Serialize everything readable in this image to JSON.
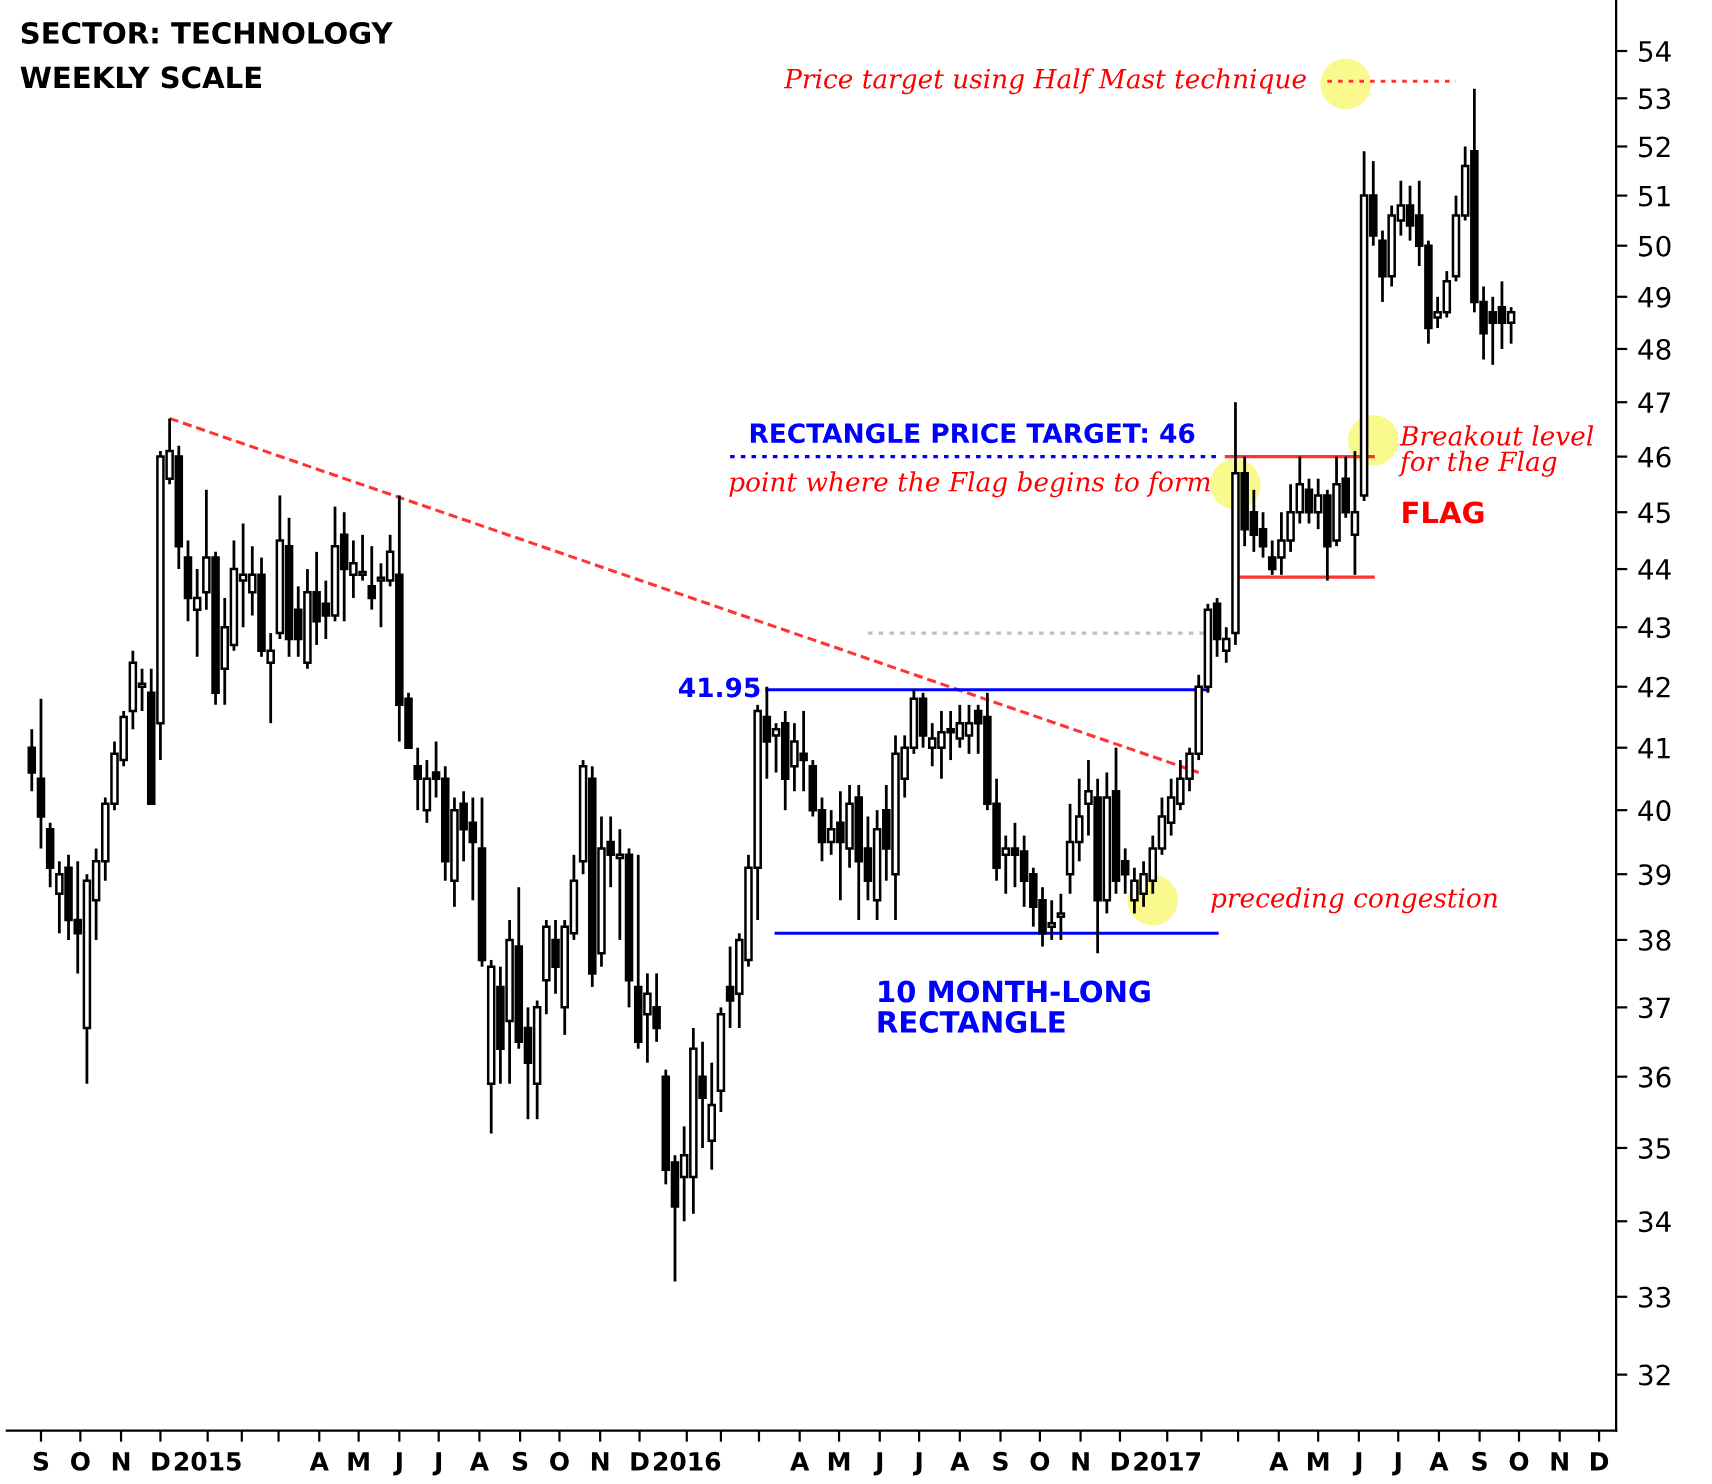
{
  "chart_data": {
    "type": "candlestick",
    "annotations": [
      "SECTOR: TECHNOLOGY",
      "WEEKLY SCALE",
      {
        "text": "Price target using Half Mast technique",
        "x": "2017-05-15",
        "y": 53.36
      },
      {
        "text": "RECTANGLE PRICE TARGET: 46",
        "x": "2016-03-07",
        "y": 46.0
      },
      {
        "text": "point where the Flag begins to form",
        "x": "2017-02-27",
        "y": 45.5
      },
      {
        "text": "Breakout level\nfor the Flag",
        "x": "2017-07-10",
        "y": 46.0
      },
      "FLAG",
      {
        "text": "41.95",
        "x": "2016-03-21",
        "y": 41.95
      },
      {
        "text": "preceding congestion",
        "x": "2017-01-23",
        "y": 38.6
      },
      "10 MONTH-LONG\nRECTANGLE"
    ],
    "x": [
      "2014-09-08",
      "2014-09-15",
      "2014-09-22",
      "2014-09-29",
      "2014-10-06",
      "2014-10-13",
      "2014-10-20",
      "2014-10-27",
      "2014-11-03",
      "2014-11-10",
      "2014-11-17",
      "2014-11-24",
      "2014-12-01",
      "2014-12-08",
      "2014-12-15",
      "2014-12-22",
      "2014-12-29",
      "2015-01-05",
      "2015-01-12",
      "2015-01-19",
      "2015-01-26",
      "2015-02-02",
      "2015-02-09",
      "2015-02-16",
      "2015-02-23",
      "2015-03-02",
      "2015-03-09",
      "2015-03-16",
      "2015-03-23",
      "2015-03-30",
      "2015-04-06",
      "2015-04-13",
      "2015-04-20",
      "2015-04-27",
      "2015-05-04",
      "2015-05-11",
      "2015-05-18",
      "2015-05-25",
      "2015-06-01",
      "2015-06-08",
      "2015-06-15",
      "2015-06-22",
      "2015-06-29",
      "2015-07-06",
      "2015-07-13",
      "2015-07-20",
      "2015-07-27",
      "2015-08-03",
      "2015-08-10",
      "2015-08-17",
      "2015-08-24",
      "2015-08-31",
      "2015-09-07",
      "2015-09-14",
      "2015-09-21",
      "2015-09-28",
      "2015-10-05",
      "2015-10-12",
      "2015-10-19",
      "2015-10-26",
      "2015-11-02",
      "2015-11-09",
      "2015-11-16",
      "2015-11-23",
      "2015-11-30",
      "2015-12-07",
      "2015-12-14",
      "2015-12-21",
      "2015-12-28",
      "2016-01-04",
      "2016-01-11",
      "2016-01-18",
      "2016-01-25",
      "2016-02-01",
      "2016-02-08",
      "2016-02-15",
      "2016-02-22",
      "2016-02-29",
      "2016-03-07",
      "2016-03-14",
      "2016-03-21",
      "2016-03-28",
      "2016-04-04",
      "2016-04-11",
      "2016-04-18",
      "2016-04-25",
      "2016-05-02",
      "2016-05-09",
      "2016-05-16",
      "2016-05-23",
      "2016-05-30",
      "2016-06-06",
      "2016-06-13",
      "2016-06-20",
      "2016-06-27",
      "2016-07-04",
      "2016-07-11",
      "2016-07-18",
      "2016-07-25",
      "2016-08-01",
      "2016-08-08",
      "2016-08-15",
      "2016-08-22",
      "2016-08-29",
      "2016-09-05",
      "2016-09-12",
      "2016-09-19",
      "2016-09-26",
      "2016-10-03",
      "2016-10-10",
      "2016-10-17",
      "2016-10-24",
      "2016-10-31",
      "2016-11-07",
      "2016-11-14",
      "2016-11-21",
      "2016-11-28",
      "2016-12-05",
      "2016-12-12",
      "2016-12-19",
      "2016-12-26",
      "2017-01-02",
      "2017-01-09",
      "2017-01-16",
      "2017-01-23",
      "2017-01-30",
      "2017-02-06",
      "2017-02-13",
      "2017-02-20",
      "2017-02-27",
      "2017-03-06",
      "2017-03-13",
      "2017-03-20",
      "2017-03-27",
      "2017-04-03",
      "2017-04-10",
      "2017-04-17",
      "2017-04-24",
      "2017-05-01",
      "2017-05-08",
      "2017-05-15",
      "2017-05-22",
      "2017-05-29",
      "2017-06-05",
      "2017-06-12",
      "2017-06-19",
      "2017-06-26",
      "2017-07-03",
      "2017-07-10",
      "2017-07-17",
      "2017-07-24",
      "2017-07-31",
      "2017-08-07",
      "2017-08-14",
      "2017-08-21",
      "2017-08-28",
      "2017-09-04",
      "2017-09-11",
      "2017-09-18",
      "2017-09-25",
      "2017-10-02",
      "2017-10-09"
    ],
    "ohlc": [
      [
        41.0,
        41.3,
        40.3,
        40.6
      ],
      [
        40.5,
        41.8,
        39.4,
        39.9
      ],
      [
        39.7,
        39.8,
        38.8,
        39.1
      ],
      [
        38.7,
        39.2,
        38.1,
        39.0
      ],
      [
        39.1,
        39.3,
        38.0,
        38.3
      ],
      [
        38.3,
        39.2,
        37.5,
        38.1
      ],
      [
        36.7,
        39.0,
        35.9,
        38.9
      ],
      [
        38.6,
        39.4,
        38.0,
        39.2
      ],
      [
        39.2,
        40.2,
        38.9,
        40.1
      ],
      [
        40.1,
        41.1,
        40.0,
        40.9
      ],
      [
        40.8,
        41.6,
        40.7,
        41.5
      ],
      [
        41.6,
        42.6,
        41.3,
        42.4
      ],
      [
        42.0,
        42.3,
        41.6,
        42.05
      ],
      [
        41.9,
        42.3,
        40.1,
        40.1
      ],
      [
        41.4,
        46.1,
        40.8,
        46.0
      ],
      [
        45.6,
        46.7,
        45.5,
        46.1
      ],
      [
        46.0,
        46.2,
        44.0,
        44.4
      ],
      [
        44.2,
        44.5,
        43.1,
        43.5
      ],
      [
        43.3,
        44.0,
        42.5,
        43.5
      ],
      [
        43.6,
        45.4,
        43.3,
        44.2
      ],
      [
        44.2,
        44.3,
        41.7,
        41.9
      ],
      [
        42.3,
        43.5,
        41.7,
        43.0
      ],
      [
        42.7,
        44.5,
        42.6,
        44.0
      ],
      [
        43.8,
        44.8,
        43.0,
        43.9
      ],
      [
        43.6,
        44.4,
        43.2,
        43.9
      ],
      [
        43.9,
        44.2,
        42.5,
        42.6
      ],
      [
        42.4,
        42.9,
        41.4,
        42.6
      ],
      [
        42.9,
        45.3,
        42.8,
        44.5
      ],
      [
        44.4,
        44.9,
        42.5,
        42.8
      ],
      [
        43.3,
        43.7,
        42.5,
        42.8
      ],
      [
        42.4,
        44.0,
        42.3,
        43.6
      ],
      [
        43.6,
        44.3,
        42.7,
        43.1
      ],
      [
        43.4,
        43.8,
        42.8,
        43.2
      ],
      [
        43.2,
        45.1,
        43.1,
        44.4
      ],
      [
        44.6,
        45.0,
        43.1,
        44.0
      ],
      [
        43.9,
        44.5,
        43.5,
        44.1
      ],
      [
        43.9,
        44.6,
        43.8,
        43.95
      ],
      [
        43.7,
        44.4,
        43.3,
        43.5
      ],
      [
        43.8,
        44.1,
        43.0,
        43.85
      ],
      [
        43.8,
        44.6,
        43.7,
        44.3
      ],
      [
        43.9,
        45.3,
        41.1,
        41.7
      ],
      [
        41.8,
        41.9,
        41.0,
        41.0
      ],
      [
        40.7,
        41.0,
        40.0,
        40.5
      ],
      [
        40.0,
        40.8,
        39.8,
        40.5
      ],
      [
        40.6,
        41.1,
        40.2,
        40.5
      ],
      [
        40.5,
        40.7,
        38.9,
        39.2
      ],
      [
        38.9,
        40.2,
        38.5,
        40.0
      ],
      [
        40.1,
        40.3,
        39.2,
        39.7
      ],
      [
        39.8,
        40.2,
        38.6,
        39.5
      ],
      [
        39.4,
        40.2,
        37.6,
        37.7
      ],
      [
        35.9,
        37.7,
        35.2,
        37.6
      ],
      [
        37.3,
        37.6,
        35.9,
        36.4
      ],
      [
        36.8,
        38.3,
        35.9,
        38.0
      ],
      [
        37.9,
        38.8,
        36.4,
        36.5
      ],
      [
        36.7,
        37.0,
        35.4,
        36.2
      ],
      [
        35.9,
        37.1,
        35.4,
        37.0
      ],
      [
        37.4,
        38.3,
        36.9,
        38.2
      ],
      [
        38.0,
        38.3,
        37.2,
        37.6
      ],
      [
        37.0,
        38.3,
        36.6,
        38.2
      ],
      [
        38.1,
        39.3,
        38.0,
        38.9
      ],
      [
        39.2,
        40.8,
        39.0,
        40.7
      ],
      [
        40.5,
        40.7,
        37.3,
        37.5
      ],
      [
        37.8,
        39.9,
        37.6,
        39.4
      ],
      [
        39.5,
        39.9,
        38.8,
        39.3
      ],
      [
        39.25,
        39.7,
        38.0,
        39.3
      ],
      [
        39.3,
        39.4,
        37.0,
        37.4
      ],
      [
        37.3,
        39.3,
        36.4,
        36.5
      ],
      [
        36.9,
        37.5,
        36.2,
        37.2
      ],
      [
        37.0,
        37.5,
        36.5,
        36.7
      ],
      [
        36.0,
        36.1,
        34.5,
        34.7
      ],
      [
        34.8,
        34.9,
        33.2,
        34.2
      ],
      [
        34.6,
        35.3,
        34.0,
        34.9
      ],
      [
        34.6,
        36.7,
        34.1,
        36.4
      ],
      [
        36.0,
        36.5,
        35.0,
        35.7
      ],
      [
        35.1,
        36.2,
        34.7,
        35.6
      ],
      [
        35.8,
        37.0,
        35.5,
        36.9
      ],
      [
        37.3,
        37.9,
        36.7,
        37.1
      ],
      [
        37.2,
        38.1,
        36.7,
        38.0
      ],
      [
        37.7,
        39.3,
        37.6,
        39.1
      ],
      [
        39.1,
        41.7,
        38.3,
        41.6
      ],
      [
        41.5,
        42.0,
        40.5,
        41.1
      ],
      [
        41.2,
        41.4,
        40.6,
        41.3
      ],
      [
        41.4,
        41.6,
        40.0,
        40.5
      ],
      [
        40.7,
        41.4,
        40.3,
        41.1
      ],
      [
        40.9,
        41.6,
        40.3,
        40.8
      ],
      [
        40.7,
        40.8,
        39.9,
        40.0
      ],
      [
        40.0,
        40.2,
        39.2,
        39.5
      ],
      [
        39.5,
        40.0,
        39.3,
        39.7
      ],
      [
        39.8,
        40.3,
        38.6,
        39.5
      ],
      [
        39.4,
        40.4,
        39.1,
        40.1
      ],
      [
        40.2,
        40.4,
        38.3,
        39.2
      ],
      [
        39.4,
        39.9,
        38.6,
        38.9
      ],
      [
        38.6,
        40.0,
        38.3,
        39.7
      ],
      [
        40.0,
        40.4,
        38.9,
        39.4
      ],
      [
        39.0,
        41.2,
        38.3,
        40.9
      ],
      [
        40.5,
        41.2,
        40.2,
        41.0
      ],
      [
        41.0,
        41.95,
        40.9,
        41.8
      ],
      [
        41.8,
        41.9,
        41.0,
        41.2
      ],
      [
        41.0,
        41.4,
        40.7,
        41.15
      ],
      [
        41.0,
        41.6,
        40.5,
        41.25
      ],
      [
        41.3,
        41.6,
        40.8,
        41.25
      ],
      [
        41.15,
        41.7,
        41.0,
        41.4
      ],
      [
        41.2,
        41.7,
        40.9,
        41.4
      ],
      [
        41.6,
        41.7,
        40.9,
        41.4
      ],
      [
        41.5,
        41.9,
        40.0,
        40.1
      ],
      [
        40.1,
        40.5,
        38.9,
        39.1
      ],
      [
        39.3,
        39.6,
        38.7,
        39.4
      ],
      [
        39.4,
        39.8,
        38.8,
        39.3
      ],
      [
        39.35,
        39.6,
        38.5,
        38.9
      ],
      [
        39.0,
        39.1,
        38.2,
        38.5
      ],
      [
        38.6,
        38.8,
        37.9,
        38.1
      ],
      [
        38.2,
        38.6,
        38.0,
        38.25
      ],
      [
        38.35,
        38.7,
        38.0,
        38.4
      ],
      [
        39.0,
        40.1,
        38.7,
        39.5
      ],
      [
        39.5,
        40.5,
        39.2,
        39.9
      ],
      [
        40.1,
        40.8,
        39.6,
        40.3
      ],
      [
        40.2,
        40.5,
        37.8,
        38.6
      ],
      [
        38.6,
        40.6,
        38.4,
        40.2
      ],
      [
        40.3,
        41.0,
        38.7,
        38.9
      ],
      [
        39.2,
        39.4,
        38.7,
        39.0
      ],
      [
        38.6,
        39.1,
        38.4,
        38.9
      ],
      [
        38.7,
        39.2,
        38.5,
        39.0
      ],
      [
        38.9,
        39.6,
        38.7,
        39.4
      ],
      [
        39.4,
        40.2,
        39.3,
        39.9
      ],
      [
        39.8,
        40.5,
        39.6,
        40.2
      ],
      [
        40.1,
        40.8,
        40.0,
        40.5
      ],
      [
        40.5,
        41.0,
        40.3,
        40.9
      ],
      [
        40.9,
        42.2,
        40.8,
        42.0
      ],
      [
        42.0,
        43.4,
        41.9,
        43.3
      ],
      [
        43.4,
        43.5,
        42.5,
        42.8
      ],
      [
        42.6,
        43.0,
        42.4,
        42.8
      ],
      [
        42.9,
        47.0,
        42.7,
        45.7
      ],
      [
        45.7,
        46.0,
        44.4,
        44.7
      ],
      [
        45.0,
        45.4,
        44.3,
        44.6
      ],
      [
        44.7,
        45.0,
        44.2,
        44.4
      ],
      [
        44.2,
        44.5,
        43.9,
        44.0
      ],
      [
        44.2,
        45.0,
        43.9,
        44.5
      ],
      [
        44.5,
        45.5,
        44.3,
        45.0
      ],
      [
        45.0,
        46.0,
        44.8,
        45.5
      ],
      [
        45.4,
        45.6,
        44.8,
        45.0
      ],
      [
        45.0,
        45.6,
        44.7,
        45.3
      ],
      [
        45.3,
        45.4,
        43.8,
        44.4
      ],
      [
        44.5,
        46.0,
        44.4,
        45.5
      ],
      [
        45.6,
        46.0,
        44.9,
        45.0
      ],
      [
        44.6,
        46.1,
        43.9,
        45.0
      ],
      [
        45.3,
        51.9,
        45.2,
        51.0
      ],
      [
        51.0,
        51.7,
        50.0,
        50.2
      ],
      [
        50.1,
        50.3,
        48.9,
        49.4
      ],
      [
        49.4,
        50.8,
        49.2,
        50.6
      ],
      [
        50.5,
        51.3,
        50.2,
        50.8
      ],
      [
        50.8,
        51.2,
        50.1,
        50.4
      ],
      [
        50.6,
        51.3,
        49.6,
        50.0
      ],
      [
        50.0,
        50.1,
        48.1,
        48.4
      ],
      [
        48.6,
        49.0,
        48.4,
        48.7
      ],
      [
        48.7,
        49.5,
        48.6,
        49.3
      ],
      [
        49.4,
        51.0,
        49.3,
        50.6
      ],
      [
        50.6,
        52.0,
        50.5,
        51.6
      ],
      [
        51.9,
        53.2,
        48.7,
        48.9
      ],
      [
        48.9,
        49.2,
        47.8,
        48.3
      ],
      [
        48.7,
        49.0,
        47.7,
        48.5
      ],
      [
        48.8,
        49.3,
        48.0,
        48.5
      ],
      [
        48.5,
        48.8,
        48.1,
        48.7
      ]
    ],
    "series": [
      {
        "type": "line",
        "x": [
          "2014-12-22",
          "2017-02-13"
        ],
        "values": [
          46.7,
          40.6
        ],
        "color": "#ff3333",
        "line_style": "dashed"
      },
      {
        "type": "line",
        "x": [
          "2016-03-21",
          "2017-02-20"
        ],
        "values": [
          41.95,
          41.95
        ],
        "color": "#0000ff",
        "line_style": "solid"
      },
      {
        "type": "line",
        "x": [
          "2016-03-28",
          "2017-02-27"
        ],
        "values": [
          38.1,
          38.1
        ],
        "color": "#0000ff",
        "line_style": "solid"
      },
      {
        "type": "line",
        "x": [
          "2016-02-22",
          "2017-02-27"
        ],
        "values": [
          46.0,
          46.0
        ],
        "color": "#0000ff",
        "line_style": "dotted"
      },
      {
        "type": "line",
        "x": [
          "2016-06-06",
          "2017-02-20"
        ],
        "values": [
          42.9,
          42.9
        ],
        "color": "#c0c0c0",
        "line_style": "dotted"
      },
      {
        "type": "line",
        "x": [
          "2017-03-06",
          "2017-06-26"
        ],
        "values": [
          46.0,
          46.0
        ],
        "color": "#ff3333",
        "line_style": "solid"
      },
      {
        "type": "line",
        "x": [
          "2017-03-13",
          "2017-06-26"
        ],
        "values": [
          43.86,
          43.86
        ],
        "color": "#ff3333",
        "line_style": "solid"
      },
      {
        "type": "line",
        "x": [
          "2017-05-22",
          "2017-08-28"
        ],
        "values": [
          53.36,
          53.36
        ],
        "color": "#ff3333",
        "line_style": "dotted"
      },
      {
        "type": "scatter",
        "x": [
          "2017-01-09",
          "2017-03-13",
          "2017-06-26",
          "2017-06-05"
        ],
        "values": [
          38.6,
          45.5,
          46.3,
          53.3
        ],
        "color": "#f7f770",
        "marker": "circle"
      }
    ],
    "xlim": [
      "2014-08-20",
      "2017-12-28"
    ],
    "xticks": [
      {
        "value": "2014-09-15",
        "label": "S"
      },
      {
        "value": "2014-10-15",
        "label": "O"
      },
      {
        "value": "2014-11-15",
        "label": "N"
      },
      {
        "value": "2014-12-15",
        "label": "D"
      },
      {
        "value": "2015-01-20",
        "label": "2015"
      },
      {
        "value": "2015-02-15",
        "label": null
      },
      {
        "value": "2015-03-15",
        "label": null
      },
      {
        "value": "2015-04-15",
        "label": "A"
      },
      {
        "value": "2015-05-15",
        "label": "M"
      },
      {
        "value": "2015-06-15",
        "label": "J"
      },
      {
        "value": "2015-07-15",
        "label": "J"
      },
      {
        "value": "2015-08-15",
        "label": "A"
      },
      {
        "value": "2015-09-15",
        "label": "S"
      },
      {
        "value": "2015-10-15",
        "label": "O"
      },
      {
        "value": "2015-11-15",
        "label": "N"
      },
      {
        "value": "2015-12-15",
        "label": "D"
      },
      {
        "value": "2016-01-20",
        "label": "2016"
      },
      {
        "value": "2016-02-15",
        "label": null
      },
      {
        "value": "2016-03-15",
        "label": null
      },
      {
        "value": "2016-04-15",
        "label": "A"
      },
      {
        "value": "2016-05-15",
        "label": "M"
      },
      {
        "value": "2016-06-15",
        "label": "J"
      },
      {
        "value": "2016-07-15",
        "label": "J"
      },
      {
        "value": "2016-08-15",
        "label": "A"
      },
      {
        "value": "2016-09-15",
        "label": "S"
      },
      {
        "value": "2016-10-15",
        "label": "O"
      },
      {
        "value": "2016-11-15",
        "label": "N"
      },
      {
        "value": "2016-12-15",
        "label": "D"
      },
      {
        "value": "2017-01-20",
        "label": "2017"
      },
      {
        "value": "2017-02-15",
        "label": null
      },
      {
        "value": "2017-03-15",
        "label": null
      },
      {
        "value": "2017-04-15",
        "label": "A"
      },
      {
        "value": "2017-05-15",
        "label": "M"
      },
      {
        "value": "2017-06-15",
        "label": "J"
      },
      {
        "value": "2017-07-15",
        "label": "J"
      },
      {
        "value": "2017-08-15",
        "label": "A"
      },
      {
        "value": "2017-09-15",
        "label": "S"
      },
      {
        "value": "2017-10-15",
        "label": "O"
      },
      {
        "value": "2017-11-15",
        "label": "N"
      },
      {
        "value": "2017-12-15",
        "label": "D"
      }
    ],
    "log": "y",
    "ylim": [
      31.3,
      55.1
    ],
    "yticks": [
      32,
      33,
      34,
      35,
      36,
      37,
      38,
      39,
      40,
      41,
      42,
      43,
      44,
      45,
      46,
      47,
      48,
      49,
      50,
      51,
      52,
      53,
      54
    ],
    "grid": false,
    "legend": false
  }
}
